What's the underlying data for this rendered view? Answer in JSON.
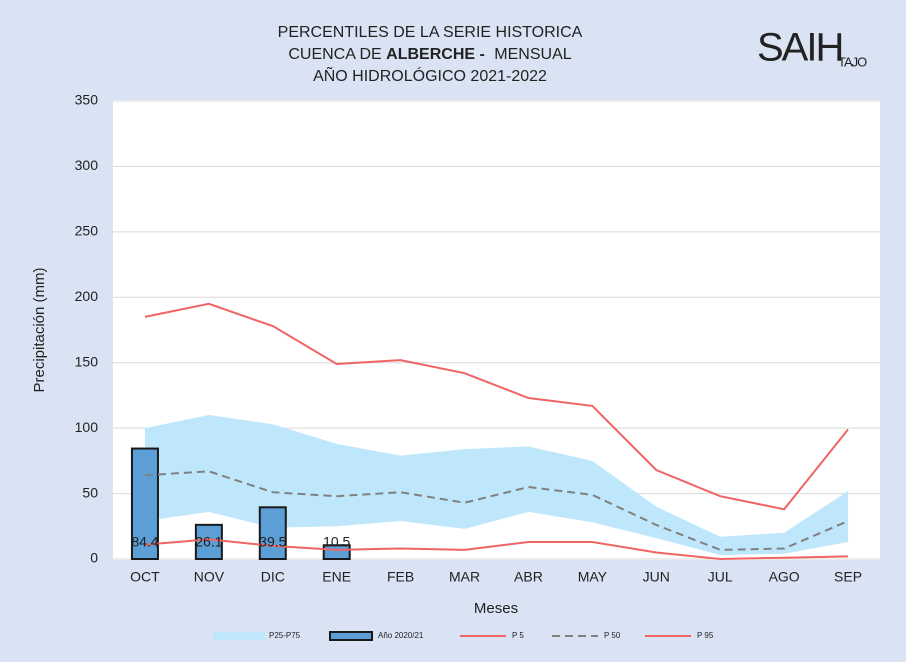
{
  "chart_data": {
    "type": "combo",
    "title": {
      "line1": "PERCENTILES DE LA SERIE HISTORICA",
      "line2_prefix": "CUENCA DE",
      "line2_bold": "ALBERCHE -",
      "line2_suffix": "MENSUAL",
      "line3": "AÑO HIDROLÓGICO 2021-2022"
    },
    "logo": {
      "main": "SAIH",
      "sub": "TAJO"
    },
    "x_label": "Meses",
    "y_label": "Precipitación (mm)",
    "categories": [
      "OCT",
      "NOV",
      "DIC",
      "ENE",
      "FEB",
      "MAR",
      "ABR",
      "MAY",
      "JUN",
      "JUL",
      "AGO",
      "SEP"
    ],
    "ylim": [
      0,
      350
    ],
    "yticks": [
      0,
      50,
      100,
      150,
      200,
      250,
      300,
      350
    ],
    "grid": true,
    "series": [
      {
        "name": "P25-P75",
        "type": "band",
        "color": "#bfe7fb",
        "upper": [
          100,
          110,
          103,
          88,
          79,
          84,
          86,
          75,
          40,
          17,
          20,
          52
        ],
        "lower": [
          29,
          36,
          24,
          25,
          29,
          23,
          36,
          28,
          16,
          3,
          4,
          13
        ]
      },
      {
        "name": "Año 2020/21",
        "type": "bar",
        "color": "#5b9fd6",
        "values": [
          84.4,
          26.1,
          39.5,
          10.5,
          null,
          null,
          null,
          null,
          null,
          null,
          null,
          null
        ]
      },
      {
        "name": "P 5",
        "type": "line",
        "color": "#f06464",
        "values": [
          11,
          15,
          10,
          7,
          8,
          7,
          13,
          13,
          5,
          0,
          1,
          2
        ]
      },
      {
        "name": "P 50",
        "type": "line",
        "color": "#808080",
        "dashed": true,
        "values": [
          64,
          67,
          51,
          48,
          51,
          43,
          55,
          49,
          26,
          7,
          8,
          29
        ]
      },
      {
        "name": "P 95",
        "type": "line",
        "color": "#f06464",
        "values": [
          185,
          195,
          178,
          149,
          152,
          142,
          123,
          117,
          68,
          48,
          38,
          99
        ]
      }
    ]
  }
}
